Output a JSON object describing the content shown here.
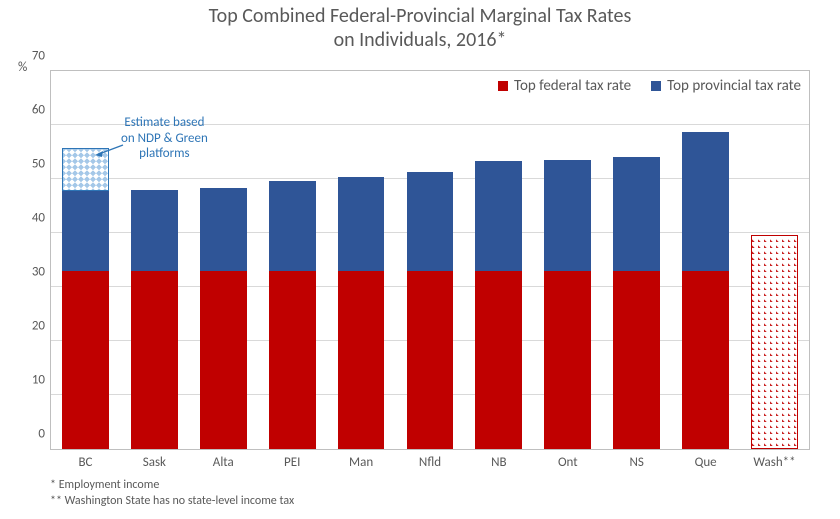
{
  "title_line1": "Top Combined Federal-Provincial Marginal Tax Rates",
  "title_line2": "on Individuals, 2016*",
  "y_axis_unit": "%",
  "y_ticks": [
    0,
    10,
    20,
    30,
    40,
    50,
    60,
    70
  ],
  "y_max": 70,
  "legend": {
    "federal": "Top federal tax rate",
    "provincial": "Top provincial tax rate"
  },
  "colors": {
    "federal": "#c00000",
    "provincial": "#2f5597",
    "estimate_border": "#2e75b6",
    "background": "#ffffff",
    "grid": "#d9d9d9",
    "text": "#595959"
  },
  "annotation": {
    "line1": "Estimate based",
    "line2": "on NDP & Green",
    "line3": "platforms"
  },
  "categories": [
    {
      "label": "BC",
      "federal": 33,
      "provincial": 14.7,
      "estimate": 8,
      "wash": 0
    },
    {
      "label": "Sask",
      "federal": 33,
      "provincial": 15,
      "estimate": 0,
      "wash": 0
    },
    {
      "label": "Alta",
      "federal": 33,
      "provincial": 15.3,
      "estimate": 0,
      "wash": 0
    },
    {
      "label": "PEI",
      "federal": 33,
      "provincial": 16.7,
      "estimate": 0,
      "wash": 0
    },
    {
      "label": "Man",
      "federal": 33,
      "provincial": 17.4,
      "estimate": 0,
      "wash": 0
    },
    {
      "label": "Nfld",
      "federal": 33,
      "provincial": 18.3,
      "estimate": 0,
      "wash": 0
    },
    {
      "label": "NB",
      "federal": 33,
      "provincial": 20.3,
      "estimate": 0,
      "wash": 0
    },
    {
      "label": "Ont",
      "federal": 33,
      "provincial": 20.5,
      "estimate": 0,
      "wash": 0
    },
    {
      "label": "NS",
      "federal": 33,
      "provincial": 21,
      "estimate": 0,
      "wash": 0
    },
    {
      "label": "Que",
      "federal": 33,
      "provincial": 25.8,
      "estimate": 0,
      "wash": 0
    },
    {
      "label": "Wash**",
      "federal": 0,
      "provincial": 0,
      "estimate": 0,
      "wash": 39.6
    }
  ],
  "footnote1": "* Employment income",
  "footnote2": "** Washington State has no state-level income tax"
}
